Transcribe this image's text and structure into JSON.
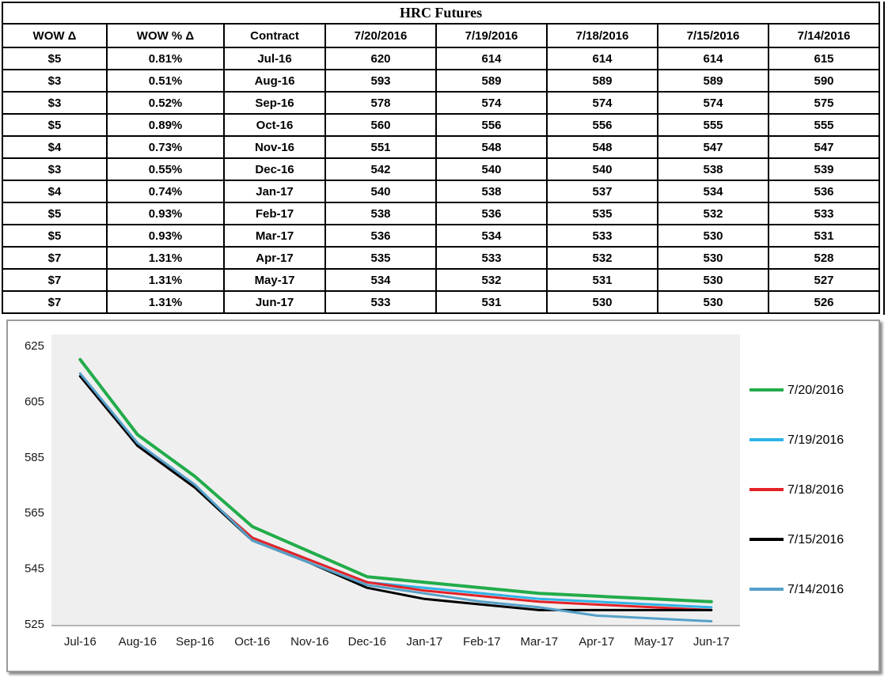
{
  "title": "HRC Futures",
  "table": {
    "headers": [
      "WOW Δ",
      "WOW % Δ",
      "Contract",
      "7/20/2016",
      "7/19/2016",
      "7/18/2016",
      "7/15/2016",
      "7/14/2016"
    ],
    "rows": [
      [
        "$5",
        "0.81%",
        "Jul-16",
        "620",
        "614",
        "614",
        "614",
        "615"
      ],
      [
        "$3",
        "0.51%",
        "Aug-16",
        "593",
        "589",
        "589",
        "589",
        "590"
      ],
      [
        "$3",
        "0.52%",
        "Sep-16",
        "578",
        "574",
        "574",
        "574",
        "575"
      ],
      [
        "$5",
        "0.89%",
        "Oct-16",
        "560",
        "556",
        "556",
        "555",
        "555"
      ],
      [
        "$4",
        "0.73%",
        "Nov-16",
        "551",
        "548",
        "548",
        "547",
        "547"
      ],
      [
        "$3",
        "0.55%",
        "Dec-16",
        "542",
        "540",
        "540",
        "538",
        "539"
      ],
      [
        "$4",
        "0.74%",
        "Jan-17",
        "540",
        "538",
        "537",
        "534",
        "536"
      ],
      [
        "$5",
        "0.93%",
        "Feb-17",
        "538",
        "536",
        "535",
        "532",
        "533"
      ],
      [
        "$5",
        "0.93%",
        "Mar-17",
        "536",
        "534",
        "533",
        "530",
        "531"
      ],
      [
        "$7",
        "1.31%",
        "Apr-17",
        "535",
        "533",
        "532",
        "530",
        "528"
      ],
      [
        "$7",
        "1.31%",
        "May-17",
        "534",
        "532",
        "531",
        "530",
        "527"
      ],
      [
        "$7",
        "1.31%",
        "Jun-17",
        "533",
        "531",
        "530",
        "530",
        "526"
      ]
    ]
  },
  "chart_data": {
    "type": "line",
    "title": "",
    "xlabel": "",
    "ylabel": "",
    "categories": [
      "Jul-16",
      "Aug-16",
      "Sep-16",
      "Oct-16",
      "Nov-16",
      "Dec-16",
      "Jan-17",
      "Feb-17",
      "Mar-17",
      "Apr-17",
      "May-17",
      "Jun-17"
    ],
    "series": [
      {
        "name": "7/20/2016",
        "color": "#22ac4a",
        "values": [
          620,
          593,
          578,
          560,
          551,
          542,
          540,
          538,
          536,
          535,
          534,
          533
        ]
      },
      {
        "name": "7/19/2016",
        "color": "#2eb3e7",
        "values": [
          614,
          589,
          574,
          556,
          548,
          540,
          538,
          536,
          534,
          533,
          532,
          531
        ]
      },
      {
        "name": "7/18/2016",
        "color": "#e32227",
        "values": [
          614,
          589,
          574,
          556,
          548,
          540,
          537,
          535,
          533,
          532,
          531,
          530
        ]
      },
      {
        "name": "7/15/2016",
        "color": "#000000",
        "values": [
          614,
          589,
          574,
          555,
          547,
          538,
          534,
          532,
          530,
          530,
          530,
          530
        ]
      },
      {
        "name": "7/14/2016",
        "color": "#55a0c8",
        "values": [
          615,
          590,
          575,
          555,
          547,
          539,
          536,
          533,
          531,
          528,
          527,
          526
        ]
      }
    ],
    "ylim": [
      525,
      625
    ],
    "yticks": [
      625,
      605,
      585,
      565,
      545,
      525
    ],
    "legend_position": "right",
    "grid": false,
    "plot_bg": "#efefef"
  }
}
